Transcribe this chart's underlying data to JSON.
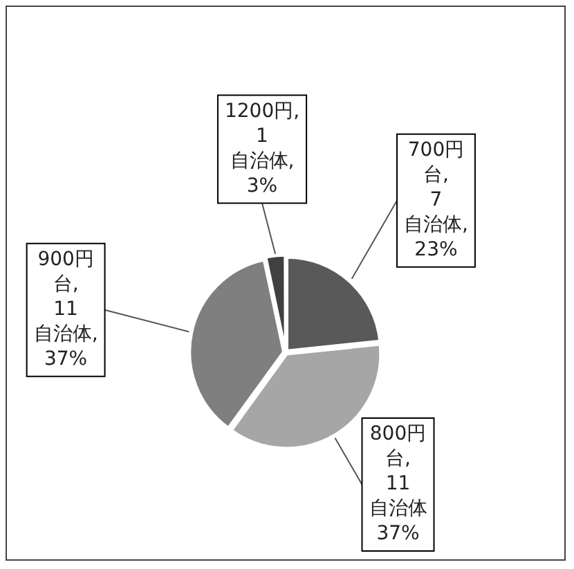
{
  "chart_data": {
    "type": "pie",
    "categories": [
      "700円台",
      "800円台",
      "900円台",
      "1200円"
    ],
    "values": [
      7,
      11,
      11,
      1
    ],
    "colors": [
      "#595959",
      "#a6a6a6",
      "#7f7f7f",
      "#404040"
    ],
    "value_labels": [
      ", 7 自治体, 23%",
      ", 11 自治体 37%",
      ", 11 自治体, 37%",
      ", 1 自治体, 3%"
    ]
  }
}
